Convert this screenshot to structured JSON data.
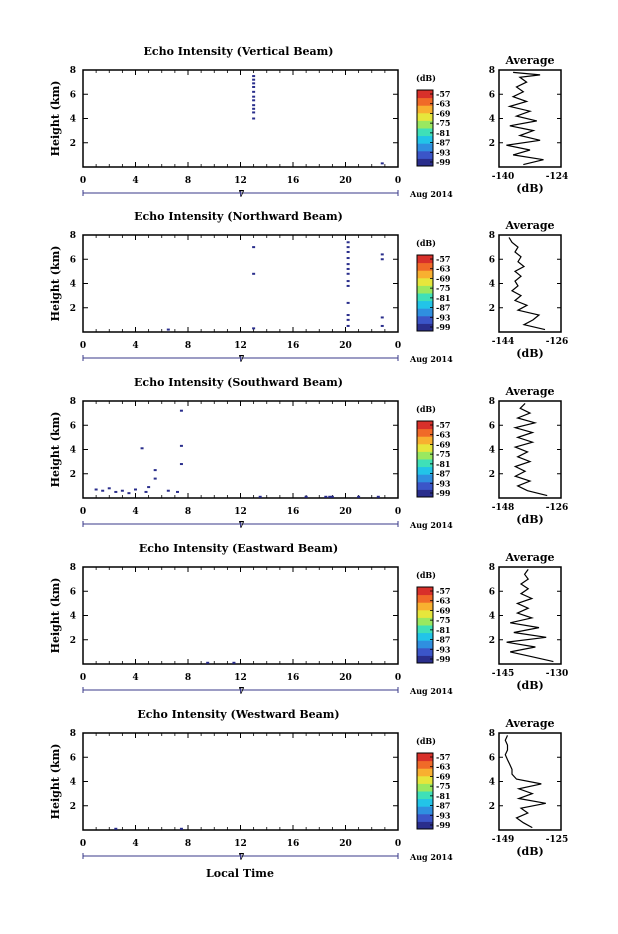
{
  "colors": {
    "axis": "#000000",
    "echo_mark": "#2a2e8c",
    "colorbar": [
      "#2a2e8c",
      "#3b55c8",
      "#2f8fe0",
      "#22c4e8",
      "#3fe0b8",
      "#9ae860",
      "#e6e63c",
      "#f8b030",
      "#f06a28",
      "#d8302a"
    ]
  },
  "common": {
    "x_ticks": [
      "0",
      "4",
      "8",
      "12",
      "16",
      "20",
      "0"
    ],
    "y_ticks": [
      "2",
      "4",
      "6",
      "8"
    ],
    "ylabel": "Height (km)",
    "date_day": "7",
    "date_label": "Aug 2014",
    "colorbar_unit": "(dB)",
    "colorbar_ticks": [
      "-57",
      "-63",
      "-69",
      "-75",
      "-81",
      "-87",
      "-93",
      "-99"
    ],
    "avg_title": "Average",
    "avg_unit": "(dB)",
    "xlabel_bottom": "Local Time"
  },
  "chart_data": [
    {
      "type": "heatmap",
      "title": "Echo Intensity (Vertical Beam)",
      "xlabel": "",
      "ylabel": "Height (km)",
      "xlim": [
        0,
        24
      ],
      "ylim": [
        0,
        8
      ],
      "color_scale": {
        "unit": "dB",
        "range": [
          -99,
          -57
        ]
      },
      "echo_points": [
        [
          13.0,
          7.5
        ],
        [
          13.0,
          7.2
        ],
        [
          13.0,
          6.9
        ],
        [
          13.0,
          6.6
        ],
        [
          13.0,
          6.2
        ],
        [
          13.0,
          5.8
        ],
        [
          13.0,
          5.5
        ],
        [
          13.0,
          5.1
        ],
        [
          13.0,
          4.8
        ],
        [
          13.0,
          4.5
        ],
        [
          13.0,
          4.0
        ],
        [
          22.8,
          0.3
        ]
      ],
      "average": {
        "xlim": [
          -140,
          -124
        ],
        "x_ticks": [
          "-140",
          "-124"
        ],
        "title": "Average",
        "xlabel": "(dB)",
        "profile": [
          [
            -134,
            0.2
          ],
          [
            -128,
            0.6
          ],
          [
            -137,
            1.0
          ],
          [
            -132,
            1.4
          ],
          [
            -139,
            1.8
          ],
          [
            -129,
            2.2
          ],
          [
            -135,
            2.6
          ],
          [
            -131,
            3.0
          ],
          [
            -138,
            3.4
          ],
          [
            -130,
            3.8
          ],
          [
            -136,
            4.2
          ],
          [
            -132,
            4.6
          ],
          [
            -138,
            5.0
          ],
          [
            -133,
            5.4
          ],
          [
            -137,
            5.8
          ],
          [
            -134,
            6.2
          ],
          [
            -136,
            6.6
          ],
          [
            -133,
            7.0
          ],
          [
            -135,
            7.4
          ],
          [
            -129,
            7.6
          ],
          [
            -137,
            7.8
          ]
        ]
      }
    },
    {
      "type": "heatmap",
      "title": "Echo Intensity (Northward Beam)",
      "xlabel": "",
      "ylabel": "Height (km)",
      "xlim": [
        0,
        24
      ],
      "ylim": [
        0,
        8
      ],
      "color_scale": {
        "unit": "dB",
        "range": [
          -99,
          -57
        ]
      },
      "echo_points": [
        [
          13.0,
          7.0
        ],
        [
          13.0,
          4.8
        ],
        [
          13.0,
          0.3
        ],
        [
          20.2,
          7.4
        ],
        [
          20.2,
          7.0
        ],
        [
          20.2,
          6.6
        ],
        [
          20.2,
          6.1
        ],
        [
          20.2,
          5.6
        ],
        [
          20.2,
          5.2
        ],
        [
          20.2,
          4.8
        ],
        [
          20.2,
          4.2
        ],
        [
          20.2,
          3.8
        ],
        [
          20.2,
          2.4
        ],
        [
          20.2,
          1.4
        ],
        [
          20.2,
          1.0
        ],
        [
          20.2,
          0.5
        ],
        [
          22.8,
          6.4
        ],
        [
          22.8,
          6.0
        ],
        [
          22.8,
          1.2
        ],
        [
          22.8,
          0.5
        ],
        [
          6.5,
          0.2
        ]
      ],
      "average": {
        "xlim": [
          -144,
          -126
        ],
        "x_ticks": [
          "-144",
          "-126"
        ],
        "title": "Average",
        "xlabel": "(dB)",
        "profile": [
          [
            -130,
            0.2
          ],
          [
            -137,
            0.6
          ],
          [
            -134,
            1.0
          ],
          [
            -132,
            1.4
          ],
          [
            -139,
            1.8
          ],
          [
            -136,
            2.2
          ],
          [
            -140,
            2.6
          ],
          [
            -138,
            3.0
          ],
          [
            -141,
            3.4
          ],
          [
            -139,
            3.8
          ],
          [
            -140,
            4.2
          ],
          [
            -138,
            4.6
          ],
          [
            -140,
            5.0
          ],
          [
            -137,
            5.4
          ],
          [
            -139,
            5.8
          ],
          [
            -138,
            6.2
          ],
          [
            -140,
            6.6
          ],
          [
            -139,
            7.0
          ],
          [
            -141,
            7.4
          ],
          [
            -142,
            7.8
          ]
        ]
      }
    },
    {
      "type": "heatmap",
      "title": "Echo Intensity (Southward Beam)",
      "xlabel": "",
      "ylabel": "Height (km)",
      "xlim": [
        0,
        24
      ],
      "ylim": [
        0,
        8
      ],
      "color_scale": {
        "unit": "dB",
        "range": [
          -99,
          -57
        ]
      },
      "echo_points": [
        [
          1.0,
          0.7
        ],
        [
          1.5,
          0.6
        ],
        [
          2.0,
          0.8
        ],
        [
          2.5,
          0.5
        ],
        [
          3.0,
          0.6
        ],
        [
          3.5,
          0.4
        ],
        [
          4.0,
          0.7
        ],
        [
          4.5,
          4.1
        ],
        [
          5.0,
          0.9
        ],
        [
          5.5,
          1.6
        ],
        [
          5.5,
          2.3
        ],
        [
          6.5,
          0.6
        ],
        [
          7.2,
          0.5
        ],
        [
          7.5,
          2.8
        ],
        [
          7.5,
          4.3
        ],
        [
          7.5,
          7.2
        ],
        [
          4.8,
          0.5
        ],
        [
          13.5,
          0.1
        ],
        [
          17.0,
          0.1
        ],
        [
          18.5,
          0.1
        ],
        [
          18.8,
          0.1
        ],
        [
          19.0,
          0.1
        ],
        [
          21.0,
          0.1
        ],
        [
          22.5,
          0.1
        ]
      ],
      "average": {
        "xlim": [
          -148,
          -126
        ],
        "x_ticks": [
          "-148",
          "-126"
        ],
        "title": "Average",
        "xlabel": "(dB)",
        "profile": [
          [
            -130,
            0.2
          ],
          [
            -138,
            0.6
          ],
          [
            -142,
            1.0
          ],
          [
            -137,
            1.4
          ],
          [
            -143,
            1.8
          ],
          [
            -139,
            2.2
          ],
          [
            -143,
            2.6
          ],
          [
            -137,
            3.0
          ],
          [
            -142,
            3.4
          ],
          [
            -138,
            3.8
          ],
          [
            -143,
            4.2
          ],
          [
            -136,
            4.6
          ],
          [
            -142,
            5.0
          ],
          [
            -136,
            5.4
          ],
          [
            -143,
            5.8
          ],
          [
            -135,
            6.2
          ],
          [
            -142,
            6.6
          ],
          [
            -137,
            7.0
          ],
          [
            -141,
            7.4
          ],
          [
            -139,
            7.8
          ]
        ]
      }
    },
    {
      "type": "heatmap",
      "title": "Echo Intensity (Eastward Beam)",
      "xlabel": "",
      "ylabel": "Height (km)",
      "xlim": [
        0,
        24
      ],
      "ylim": [
        0,
        8
      ],
      "color_scale": {
        "unit": "dB",
        "range": [
          -99,
          -57
        ]
      },
      "echo_points": [
        [
          9.5,
          0.1
        ],
        [
          11.5,
          0.1
        ]
      ],
      "average": {
        "xlim": [
          -145,
          -130
        ],
        "x_ticks": [
          "-145",
          "-130"
        ],
        "title": "Average",
        "xlabel": "(dB)",
        "profile": [
          [
            -131,
            0.2
          ],
          [
            -137,
            0.6
          ],
          [
            -143,
            1.0
          ],
          [
            -136,
            1.4
          ],
          [
            -144,
            1.8
          ],
          [
            -133,
            2.2
          ],
          [
            -142,
            2.6
          ],
          [
            -135,
            3.0
          ],
          [
            -143,
            3.4
          ],
          [
            -137,
            3.8
          ],
          [
            -141,
            4.2
          ],
          [
            -138,
            4.6
          ],
          [
            -141,
            5.0
          ],
          [
            -137,
            5.4
          ],
          [
            -140,
            5.8
          ],
          [
            -138,
            6.2
          ],
          [
            -140,
            6.6
          ],
          [
            -138,
            7.0
          ],
          [
            -139,
            7.4
          ],
          [
            -138,
            7.8
          ]
        ]
      }
    },
    {
      "type": "heatmap",
      "title": "Echo Intensity (Westward Beam)",
      "xlabel": "Local Time",
      "ylabel": "Height (km)",
      "xlim": [
        0,
        24
      ],
      "ylim": [
        0,
        8
      ],
      "color_scale": {
        "unit": "dB",
        "range": [
          -99,
          -57
        ]
      },
      "echo_points": [
        [
          2.5,
          0.1
        ],
        [
          7.5,
          0.1
        ]
      ],
      "average": {
        "xlim": [
          -149,
          -125
        ],
        "x_ticks": [
          "-149",
          "-125"
        ],
        "title": "Average",
        "xlabel": "(dB)",
        "profile": [
          [
            -136,
            0.2
          ],
          [
            -140,
            0.6
          ],
          [
            -143,
            1.0
          ],
          [
            -138,
            1.4
          ],
          [
            -141,
            1.8
          ],
          [
            -130,
            2.2
          ],
          [
            -142,
            2.6
          ],
          [
            -136,
            3.0
          ],
          [
            -142,
            3.4
          ],
          [
            -132,
            3.8
          ],
          [
            -143,
            4.2
          ],
          [
            -145,
            4.6
          ],
          [
            -145,
            5.0
          ],
          [
            -146,
            5.4
          ],
          [
            -147,
            5.8
          ],
          [
            -148,
            6.2
          ],
          [
            -147,
            6.6
          ],
          [
            -147,
            7.0
          ],
          [
            -148,
            7.4
          ],
          [
            -147,
            7.8
          ]
        ]
      }
    }
  ]
}
